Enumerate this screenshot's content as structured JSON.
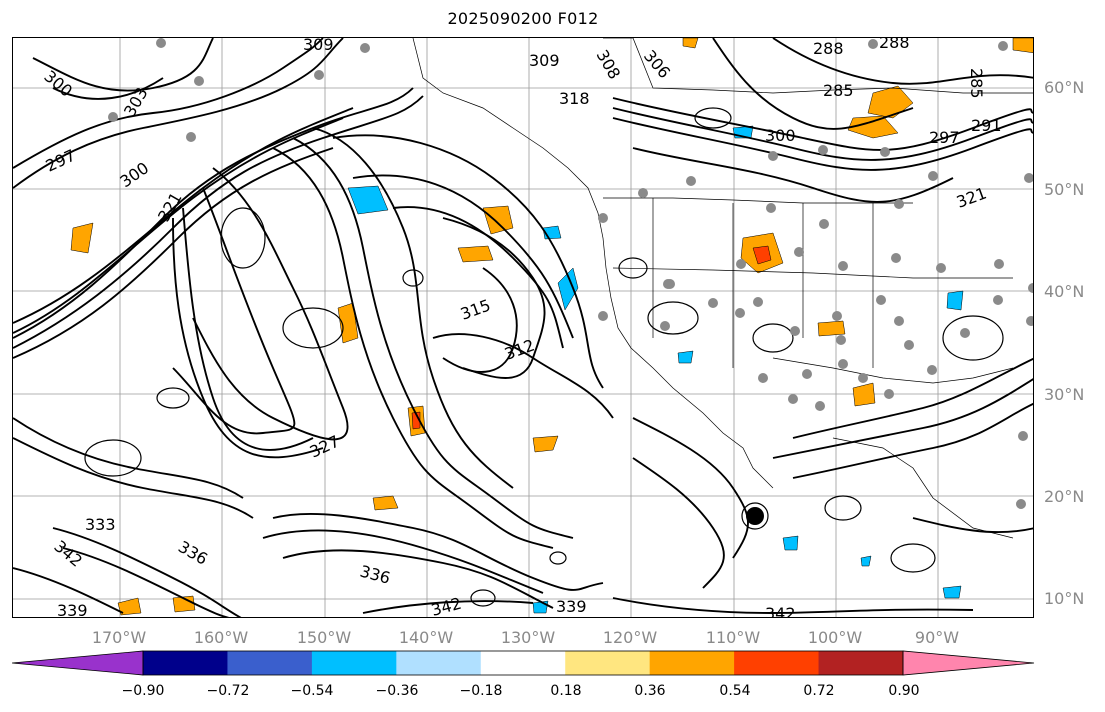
{
  "title": "2025090200 F012",
  "lat_labels": [
    "60°N",
    "50°N",
    "40°N",
    "30°N",
    "20°N",
    "10°N"
  ],
  "lon_labels": [
    "170°W",
    "160°W",
    "150°W",
    "140°W",
    "130°W",
    "120°W",
    "110°W",
    "100°W",
    "90°W"
  ],
  "contour_labels": [
    "300",
    "309",
    "308",
    "306",
    "288",
    "288",
    "285",
    "285",
    "309",
    "318",
    "300",
    "297",
    "291",
    "297",
    "303",
    "300",
    "321",
    "315",
    "312",
    "327",
    "342",
    "336",
    "339",
    "339",
    "342",
    "333",
    "321",
    "342",
    "336"
  ],
  "colorbar": {
    "ticks": [
      "−0.90",
      "−0.72",
      "−0.54",
      "−0.36",
      "−0.18",
      "0.18",
      "0.36",
      "0.54",
      "0.72",
      "0.90"
    ],
    "colors": [
      "#9932cc",
      "#00008b",
      "#3a5fcd",
      "#00bfff",
      "#b0e0ff",
      "#ffffff",
      "#ffe680",
      "#ffa500",
      "#ff4000",
      "#b22222",
      "#ff85ad"
    ]
  },
  "hurricane_symbol": "tropical-cyclone"
}
